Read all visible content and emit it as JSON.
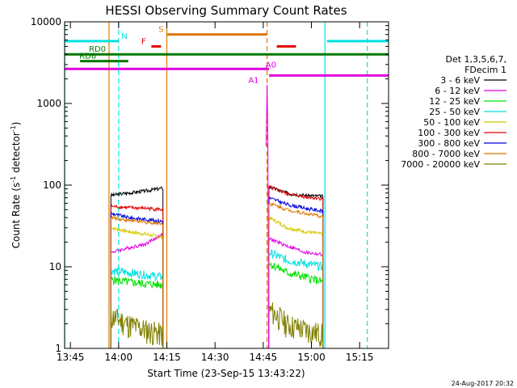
{
  "chart_data": {
    "type": "line",
    "title": "HESSI Observing Summary Count Rates",
    "xlabel": "Start Time (23-Sep-15 13:43:22)",
    "ylabel": "Count Rate (s",
    "ylabel_sup1": "-1",
    "ylabel_mid": " detector",
    "ylabel_sup2": "-1",
    "ylabel_end": ")",
    "xlim": [
      13.72,
      15.4
    ],
    "ylim": [
      1,
      10000
    ],
    "yscale": "log",
    "x_ticks": [
      {
        "v": 13.75,
        "label": "13:45"
      },
      {
        "v": 14.0,
        "label": "14:00"
      },
      {
        "v": 14.25,
        "label": "14:15"
      },
      {
        "v": 14.5,
        "label": "14:30"
      },
      {
        "v": 14.75,
        "label": "14:45"
      },
      {
        "v": 15.0,
        "label": "15:00"
      },
      {
        "v": 15.25,
        "label": "15:15"
      }
    ],
    "y_ticks": [
      {
        "v": 1,
        "label": "1"
      },
      {
        "v": 10,
        "label": "10"
      },
      {
        "v": 100,
        "label": "100"
      },
      {
        "v": 1000,
        "label": "1000"
      },
      {
        "v": 10000,
        "label": "10000"
      }
    ],
    "legend_header": [
      "Det 1,3,5,6,7,",
      "FDecim 1"
    ],
    "series": [
      {
        "name": "3 - 6 keV",
        "color": "#000000",
        "seg1": [
          75,
          80,
          85,
          92
        ],
        "seg2": [
          95,
          80,
          75,
          73
        ]
      },
      {
        "name": "6 - 12 keV",
        "color": "#e000e0",
        "seg1": [
          15,
          17,
          19,
          25
        ],
        "seg2": [
          22,
          18,
          15,
          14
        ]
      },
      {
        "name": "12 - 25 keV",
        "color": "#00e000",
        "seg1": [
          7,
          6.5,
          6.2,
          6.0
        ],
        "seg2": [
          11,
          8.5,
          7.5,
          6.5
        ]
      },
      {
        "name": "25 - 50 keV",
        "color": "#00e0e0",
        "seg1": [
          9,
          8.5,
          8,
          7.5
        ],
        "seg2": [
          15,
          12,
          11,
          10
        ]
      },
      {
        "name": "50 - 100 keV",
        "color": "#d4c800",
        "seg1": [
          30,
          27,
          25,
          23
        ],
        "seg2": [
          40,
          30,
          27,
          25
        ]
      },
      {
        "name": "100 - 300 keV",
        "color": "#e00000",
        "seg1": [
          55,
          53,
          52,
          50
        ],
        "seg2": [
          95,
          78,
          72,
          68
        ]
      },
      {
        "name": "300 - 800 keV",
        "color": "#0000e0",
        "seg1": [
          45,
          40,
          38,
          36
        ],
        "seg2": [
          70,
          58,
          52,
          48
        ]
      },
      {
        "name": "800 - 7000 keV",
        "color": "#e07800",
        "seg1": [
          40,
          37,
          35,
          34
        ],
        "seg2": [
          60,
          50,
          45,
          41
        ]
      },
      {
        "name": "7000 - 20000 keV",
        "color": "#808000",
        "seg1": [
          2.5,
          2.0,
          1.7,
          1.5
        ],
        "seg2": [
          3.0,
          2.0,
          1.7,
          1.5
        ]
      }
    ],
    "segments": {
      "seg1_x": [
        13.96,
        14.23
      ],
      "seg2_x": [
        14.78,
        15.06
      ]
    },
    "spike": {
      "x": 14.77,
      "peak": 1700
    },
    "flag_bars": [
      {
        "label": "N",
        "color": "#00e0e0",
        "y": 5800,
        "ranges": [
          [
            13.72,
            14.0
          ],
          [
            15.08,
            15.4
          ]
        ]
      },
      {
        "label": "S",
        "color": "#e07800",
        "y": 7000,
        "ranges": [
          [
            14.25,
            14.77
          ]
        ]
      },
      {
        "label": "F",
        "color": "#e00000",
        "y": 5000,
        "ranges": [
          [
            14.17,
            14.22
          ],
          [
            14.82,
            14.92
          ]
        ]
      },
      {
        "label": "RD0",
        "color": "#007800",
        "y": 4000,
        "ranges": [
          [
            13.72,
            15.4
          ]
        ]
      },
      {
        "label": "RD6",
        "color": "#007800",
        "y": 3300,
        "ranges": [
          [
            13.8,
            14.05
          ]
        ]
      },
      {
        "label": "A0",
        "color": "#e000e0",
        "y": 2650,
        "ranges": [
          [
            13.72,
            14.78
          ]
        ]
      },
      {
        "label": "A1",
        "color": "#e000e0",
        "y": 2200,
        "ranges": [
          [
            14.78,
            15.4
          ]
        ]
      }
    ],
    "vlines": [
      {
        "x": 13.72,
        "color": "#00e0e0",
        "dashed": false
      },
      {
        "x": 14.0,
        "color": "#00e0e0",
        "dashed": true
      },
      {
        "x": 14.25,
        "color": "#e07800",
        "dashed": false
      },
      {
        "x": 14.77,
        "color": "#e07800",
        "dashed": true
      },
      {
        "x": 15.07,
        "color": "#00e0e0",
        "dashed": false
      },
      {
        "x": 15.29,
        "color": "#00e0e0",
        "dashed": true
      },
      {
        "x": 13.95,
        "color": "#e07800",
        "dashed": false
      }
    ],
    "footer": "24-Aug-2017 20:32"
  }
}
